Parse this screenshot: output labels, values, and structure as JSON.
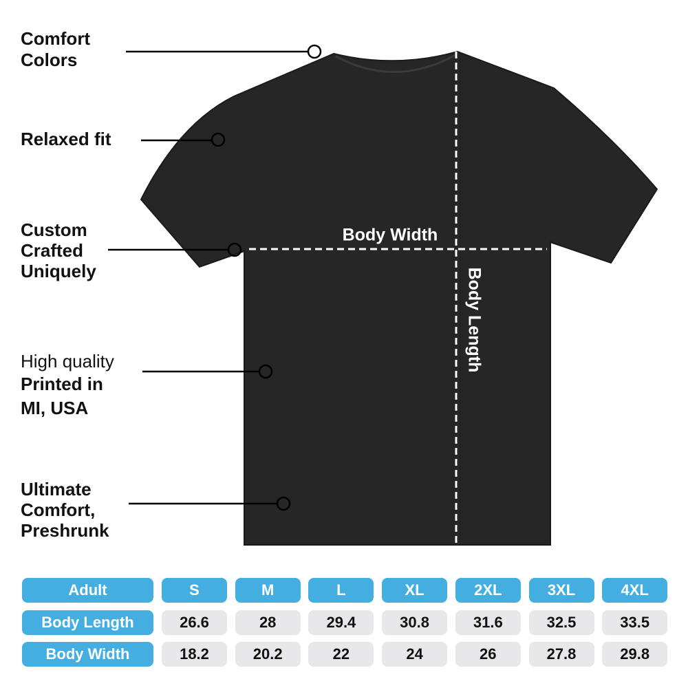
{
  "callouts": [
    {
      "lines": [
        "Comfort",
        "Colors"
      ]
    },
    {
      "lines": [
        "Relaxed fit"
      ]
    },
    {
      "lines": [
        "Custom",
        "Crafted",
        "Uniquely"
      ]
    },
    {
      "lines": [
        "High quality",
        "Printed in",
        "MI, USA"
      ]
    },
    {
      "lines": [
        "Ultimate",
        "Comfort,",
        "Preshrunk"
      ]
    }
  ],
  "measures": {
    "width": "Body Width",
    "length": "Body Length"
  },
  "table": {
    "header": [
      "Adult",
      "S",
      "M",
      "L",
      "XL",
      "2XL",
      "3XL",
      "4XL"
    ],
    "rows": [
      [
        "Body Length",
        26.6,
        28,
        29.4,
        30.8,
        31.6,
        32.5,
        33.5
      ],
      [
        "Body Width",
        18.2,
        20.2,
        22,
        24,
        26,
        27.8,
        29.8
      ]
    ]
  }
}
